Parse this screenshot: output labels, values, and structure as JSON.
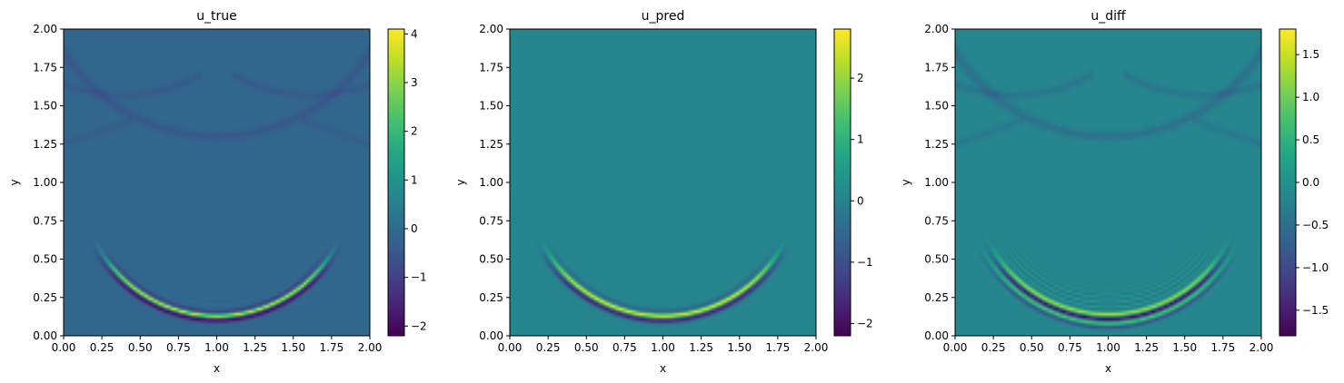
{
  "chart_data": [
    {
      "type": "heatmap",
      "title": "u_true",
      "xlabel": "x",
      "ylabel": "y",
      "xlim": [
        0,
        2
      ],
      "ylim": [
        0,
        2
      ],
      "x_ticks": [
        "0.00",
        "0.25",
        "0.50",
        "0.75",
        "1.00",
        "1.25",
        "1.50",
        "1.75",
        "2.00"
      ],
      "y_ticks": [
        "0.00",
        "0.25",
        "0.50",
        "0.75",
        "1.00",
        "1.25",
        "1.50",
        "1.75",
        "2.00"
      ],
      "colormap": "viridis",
      "colorbar": {
        "min": -2.2,
        "max": 4.1,
        "ticks": [
          -2,
          -1,
          0,
          1,
          2,
          3,
          4
        ],
        "tick_labels": [
          "−2",
          "−1",
          "0",
          "1",
          "2",
          "3",
          "4"
        ]
      },
      "features": {
        "primary_front": {
          "center": [
            1.0,
            1.02
          ],
          "radius": 0.89,
          "peak_positive": 4.1,
          "peak_negative": -2.2
        },
        "reflected_arc": {
          "center": [
            1.0,
            2.48
          ],
          "radius": 1.18,
          "amplitude": -0.35
        },
        "background_value": -0.1
      }
    },
    {
      "type": "heatmap",
      "title": "u_pred",
      "xlabel": "x",
      "ylabel": "y",
      "xlim": [
        0,
        2
      ],
      "ylim": [
        0,
        2
      ],
      "x_ticks": [
        "0.00",
        "0.25",
        "0.50",
        "0.75",
        "1.00",
        "1.25",
        "1.50",
        "1.75",
        "2.00"
      ],
      "y_ticks": [
        "0.00",
        "0.25",
        "0.50",
        "0.75",
        "1.00",
        "1.25",
        "1.50",
        "1.75",
        "2.00"
      ],
      "colormap": "viridis",
      "colorbar": {
        "min": -2.2,
        "max": 2.8,
        "ticks": [
          -2,
          -1,
          0,
          1,
          2
        ],
        "tick_labels": [
          "−2",
          "−1",
          "0",
          "1",
          "2"
        ]
      },
      "features": {
        "primary_front": {
          "center": [
            1.0,
            1.02
          ],
          "radius": 0.89,
          "peak_positive": 2.8,
          "peak_negative": -2.2
        },
        "background_value": 0.05
      }
    },
    {
      "type": "heatmap",
      "title": "u_diff",
      "xlabel": "x",
      "ylabel": "y",
      "xlim": [
        0,
        2
      ],
      "ylim": [
        0,
        2
      ],
      "x_ticks": [
        "0.00",
        "0.25",
        "0.50",
        "0.75",
        "1.00",
        "1.25",
        "1.50",
        "1.75",
        "2.00"
      ],
      "y_ticks": [
        "0.00",
        "0.25",
        "0.50",
        "0.75",
        "1.00",
        "1.25",
        "1.50",
        "1.75",
        "2.00"
      ],
      "colormap": "viridis",
      "colorbar": {
        "min": -1.8,
        "max": 1.8,
        "ticks": [
          -1.5,
          -1.0,
          -0.5,
          0.0,
          0.5,
          1.0,
          1.5
        ],
        "tick_labels": [
          "−1.5",
          "−1.0",
          "−0.5",
          "0.0",
          "0.5",
          "1.0",
          "1.5"
        ]
      },
      "features": {
        "primary_front": {
          "center": [
            1.0,
            1.02
          ],
          "radius": 0.89,
          "peak_positive": 1.8,
          "peak_negative": -1.8
        },
        "reflected_arc": {
          "center": [
            1.0,
            2.48
          ],
          "radius": 1.18,
          "amplitude": -0.3
        },
        "background_value": -0.15
      }
    }
  ]
}
